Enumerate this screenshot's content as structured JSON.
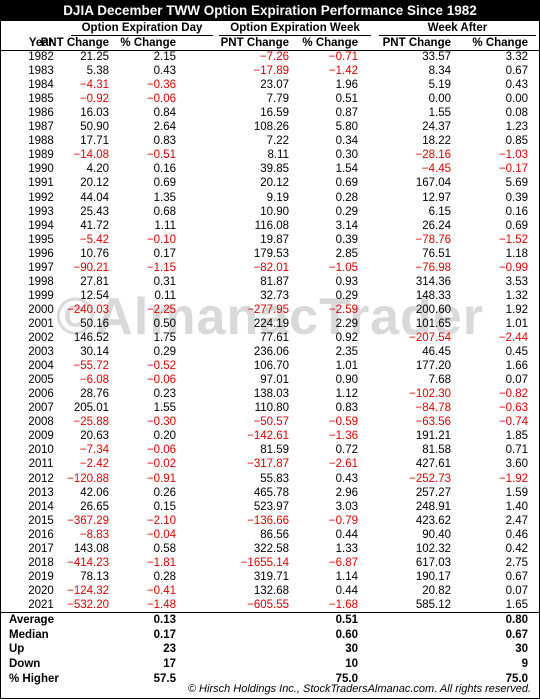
{
  "title": "DJIA December TWW Option Expiration Performance Since 1982",
  "groups": [
    "Option Expiration Day",
    "Option Expiration Week",
    "Week After"
  ],
  "columns": [
    "Year",
    "PNT Change",
    "% Change",
    "PNT Change",
    "% Change",
    "PNT Change",
    "% Change"
  ],
  "rows": [
    [
      "1982",
      "21.25",
      "2.15",
      "−7.26",
      "−0.71",
      "33.57",
      "3.32"
    ],
    [
      "1983",
      "5.38",
      "0.43",
      "−17.89",
      "−1.42",
      "8.34",
      "0.67"
    ],
    [
      "1984",
      "−4.31",
      "−0.36",
      "23.07",
      "1.96",
      "5.19",
      "0.43"
    ],
    [
      "1985",
      "−0.92",
      "−0.06",
      "7.79",
      "0.51",
      "0.00",
      "0.00"
    ],
    [
      "1986",
      "16.03",
      "0.84",
      "16.59",
      "0.87",
      "1.55",
      "0.08"
    ],
    [
      "1987",
      "50.90",
      "2.64",
      "108.26",
      "5.80",
      "24.37",
      "1.23"
    ],
    [
      "1988",
      "17.71",
      "0.83",
      "7.22",
      "0.34",
      "18.22",
      "0.85"
    ],
    [
      "1989",
      "−14.08",
      "−0.51",
      "8.11",
      "0.30",
      "−28.16",
      "−1.03"
    ],
    [
      "1990",
      "4.20",
      "0.16",
      "39.85",
      "1.54",
      "−4.45",
      "−0.17"
    ],
    [
      "1991",
      "20.12",
      "0.69",
      "20.12",
      "0.69",
      "167.04",
      "5.69"
    ],
    [
      "1992",
      "44.04",
      "1.35",
      "9.19",
      "0.28",
      "12.97",
      "0.39"
    ],
    [
      "1993",
      "25.43",
      "0.68",
      "10.90",
      "0.29",
      "6.15",
      "0.16"
    ],
    [
      "1994",
      "41.72",
      "1.11",
      "116.08",
      "3.14",
      "26.24",
      "0.69"
    ],
    [
      "1995",
      "−5.42",
      "−0.10",
      "19.87",
      "0.39",
      "−78.76",
      "−1.52"
    ],
    [
      "1996",
      "10.76",
      "0.17",
      "179.53",
      "2.85",
      "76.51",
      "1.18"
    ],
    [
      "1997",
      "−90.21",
      "−1.15",
      "−82.01",
      "−1.05",
      "−76.98",
      "−0.99"
    ],
    [
      "1998",
      "27.81",
      "0.31",
      "81.87",
      "0.93",
      "314.36",
      "3.53"
    ],
    [
      "1999",
      "12.54",
      "0.11",
      "32.73",
      "0.29",
      "148.33",
      "1.32"
    ],
    [
      "2000",
      "−240.03",
      "−2.25",
      "−277.95",
      "−2.59",
      "200.60",
      "1.92"
    ],
    [
      "2001",
      "50.16",
      "0.50",
      "224.19",
      "2.29",
      "101.65",
      "1.01"
    ],
    [
      "2002",
      "146.52",
      "1.75",
      "77.61",
      "0.92",
      "−207.54",
      "−2.44"
    ],
    [
      "2003",
      "30.14",
      "0.29",
      "236.06",
      "2.35",
      "46.45",
      "0.45"
    ],
    [
      "2004",
      "−55.72",
      "−0.52",
      "106.70",
      "1.01",
      "177.20",
      "1.66"
    ],
    [
      "2005",
      "−6.08",
      "−0.06",
      "97.01",
      "0.90",
      "7.68",
      "0.07"
    ],
    [
      "2006",
      "28.76",
      "0.23",
      "138.03",
      "1.12",
      "−102.30",
      "−0.82"
    ],
    [
      "2007",
      "205.01",
      "1.55",
      "110.80",
      "0.83",
      "−84.78",
      "−0.63"
    ],
    [
      "2008",
      "−25.88",
      "−0.30",
      "−50.57",
      "−0.59",
      "−63.56",
      "−0.74"
    ],
    [
      "2009",
      "20.63",
      "0.20",
      "−142.61",
      "−1.36",
      "191.21",
      "1.85"
    ],
    [
      "2010",
      "−7.34",
      "−0.06",
      "81.59",
      "0.72",
      "81.58",
      "0.71"
    ],
    [
      "2011",
      "−2.42",
      "−0.02",
      "−317.87",
      "−2.61",
      "427.61",
      "3.60"
    ],
    [
      "2012",
      "−120.88",
      "−0.91",
      "55.83",
      "0.43",
      "−252.73",
      "−1.92"
    ],
    [
      "2013",
      "42.06",
      "0.26",
      "465.78",
      "2.96",
      "257.27",
      "1.59"
    ],
    [
      "2014",
      "26.65",
      "0.15",
      "523.97",
      "3.03",
      "248.91",
      "1.40"
    ],
    [
      "2015",
      "−367.29",
      "−2.10",
      "−136.66",
      "−0.79",
      "423.62",
      "2.47"
    ],
    [
      "2016",
      "−8.83",
      "−0.04",
      "86.56",
      "0.44",
      "90.40",
      "0.46"
    ],
    [
      "2017",
      "143.08",
      "0.58",
      "322.58",
      "1.33",
      "102.32",
      "0.42"
    ],
    [
      "2018",
      "−414.23",
      "−1.81",
      "−1655.14",
      "−6.87",
      "617.03",
      "2.75"
    ],
    [
      "2019",
      "78.13",
      "0.28",
      "319.71",
      "1.14",
      "190.17",
      "0.67"
    ],
    [
      "2020",
      "−124.32",
      "−0.41",
      "132.68",
      "0.44",
      "20.82",
      "0.07"
    ],
    [
      "2021",
      "−532.20",
      "−1.48",
      "−605.55",
      "−1.68",
      "585.12",
      "1.65"
    ]
  ],
  "summary": [
    {
      "label": "Average",
      "values": [
        "0.13",
        "0.51",
        "0.80"
      ]
    },
    {
      "label": "Median",
      "values": [
        "0.17",
        "0.60",
        "0.67"
      ]
    },
    {
      "label": "Up",
      "values": [
        "23",
        "30",
        "30"
      ]
    },
    {
      "label": "Down",
      "values": [
        "17",
        "10",
        "9"
      ]
    },
    {
      "label": "% Higher",
      "values": [
        "57.5",
        "75.0",
        "75.0"
      ]
    }
  ],
  "watermark": "©AlmanacTrader",
  "footer": "© Hirsch Holdings Inc., StockTradersAlmanac.com. All rights reserved."
}
